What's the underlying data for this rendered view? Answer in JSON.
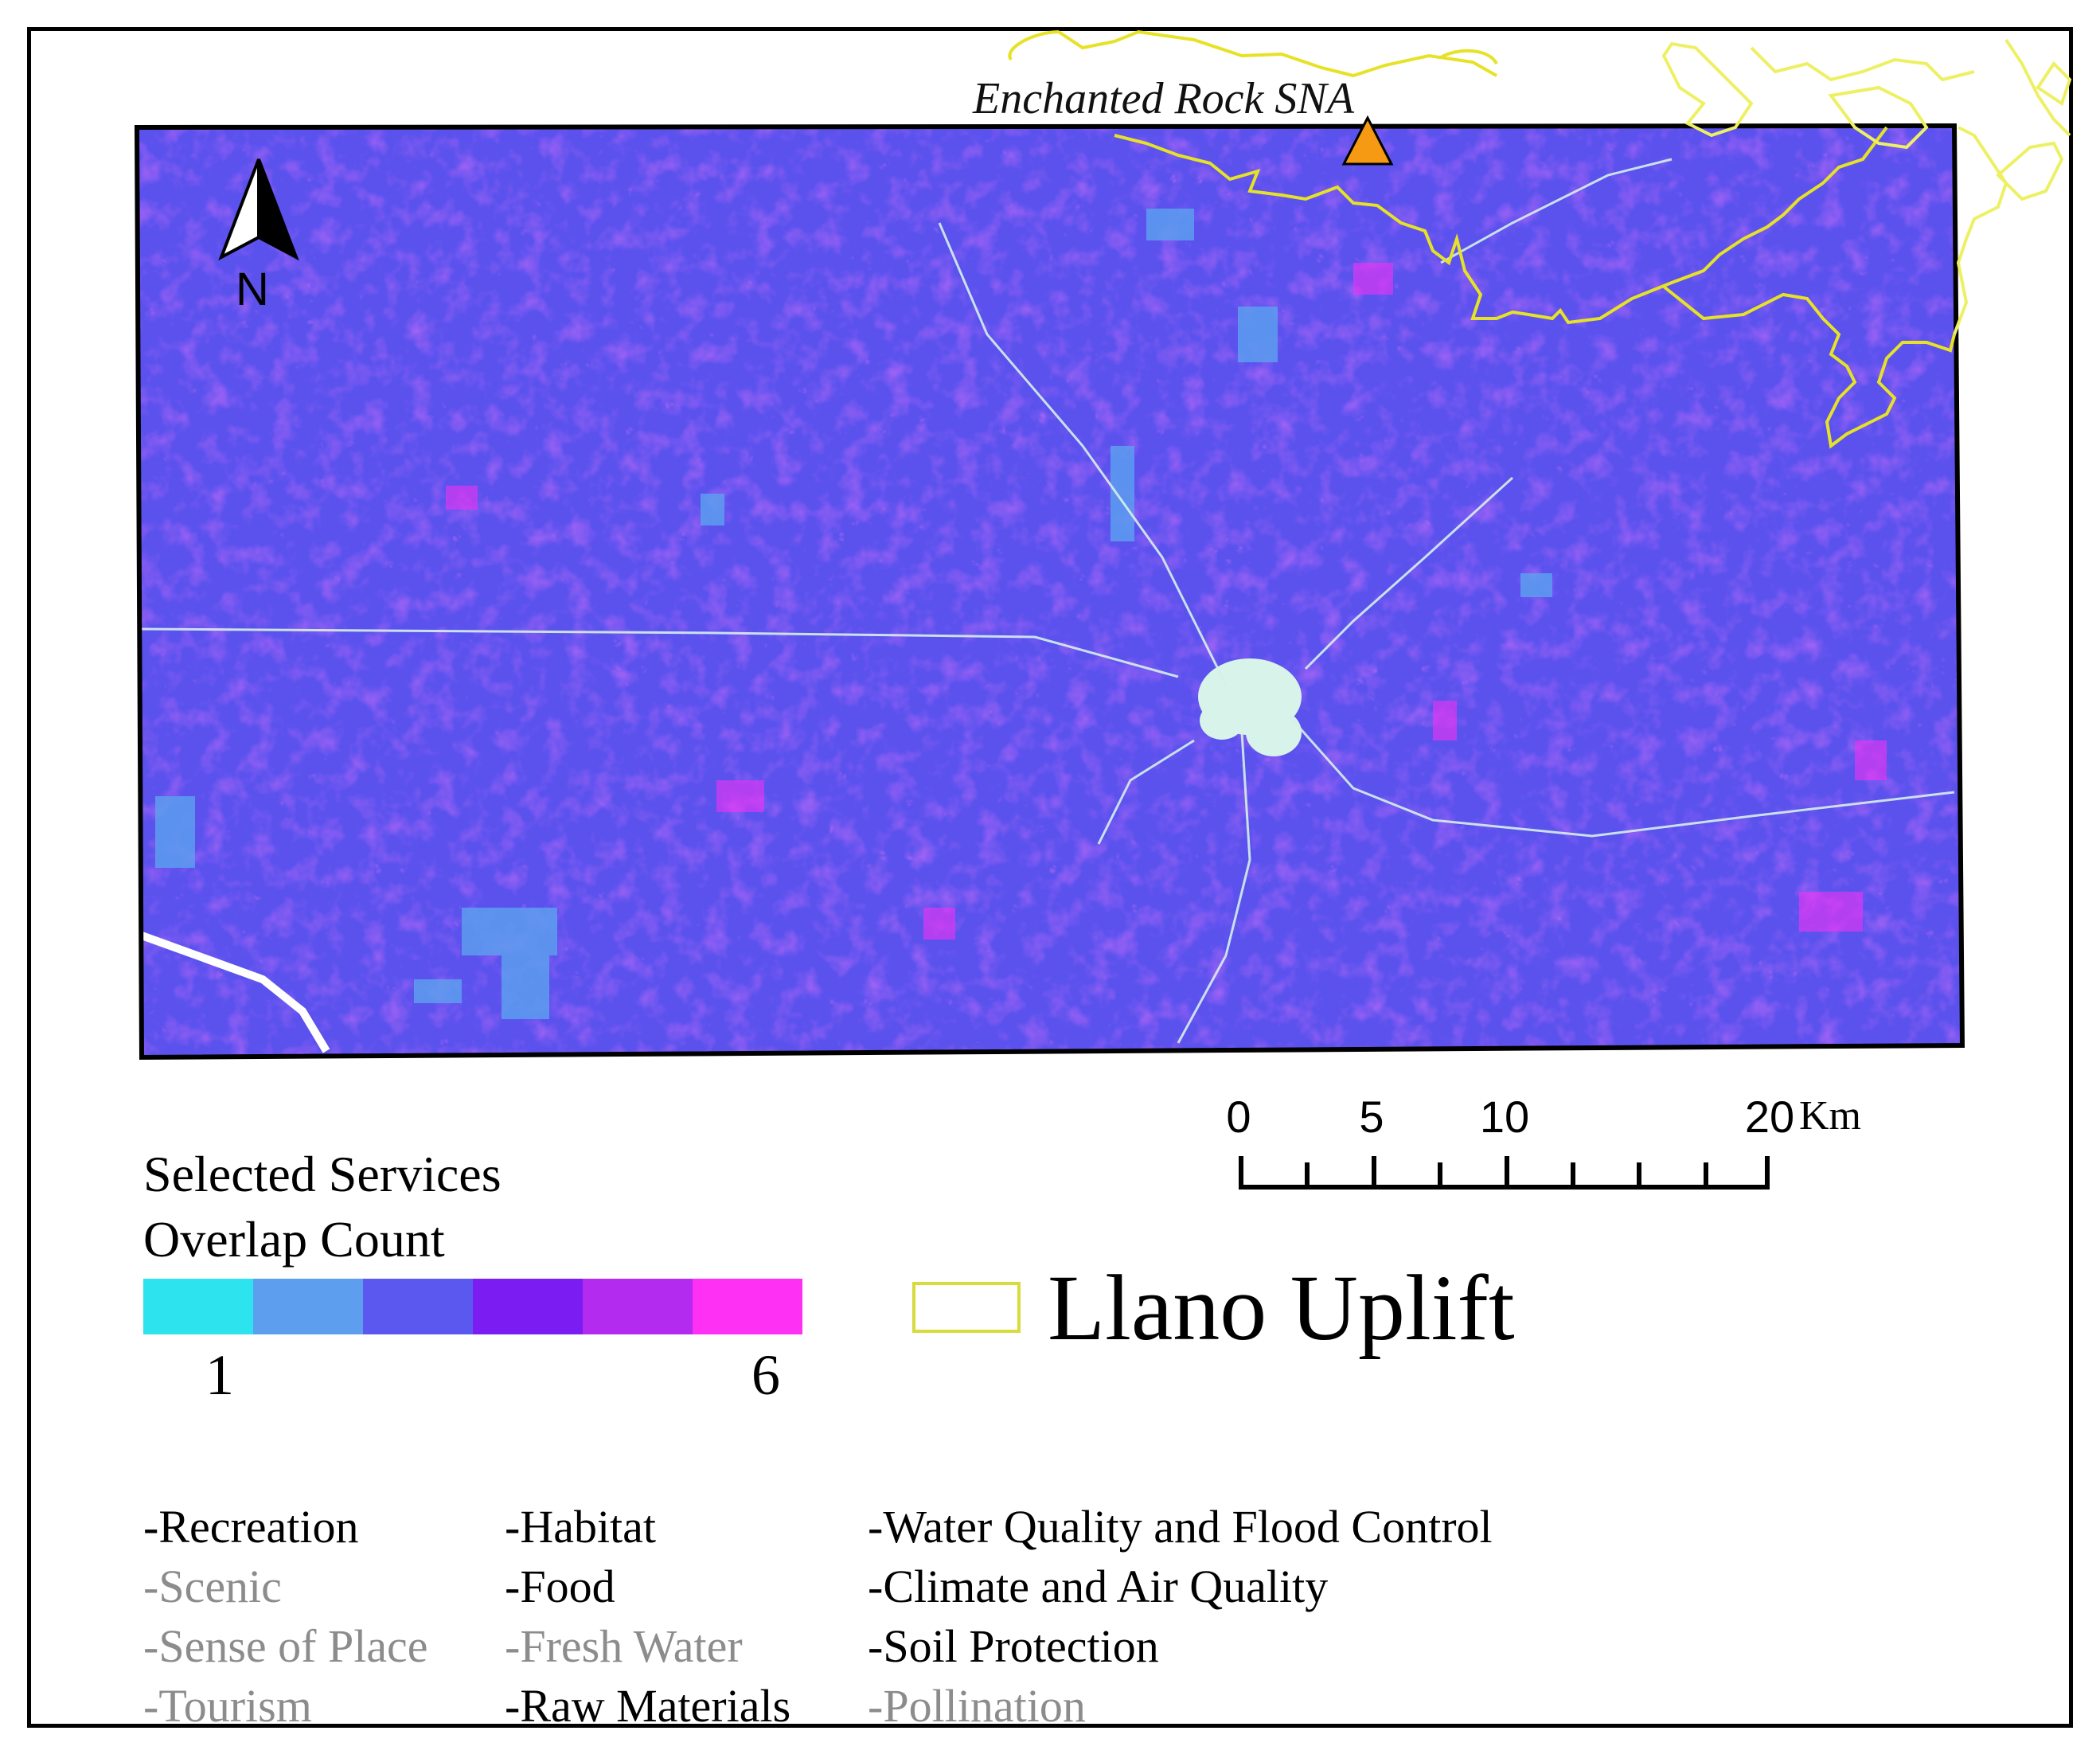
{
  "map": {
    "marker_label": "Enchanted Rock SNA",
    "marker_color": "#f59a12",
    "boundary_color": "#e7e62a",
    "north_label": "N"
  },
  "scale": {
    "ticks": [
      "0",
      "5",
      "10",
      "20"
    ],
    "unit": "Km"
  },
  "legend": {
    "title_line1": "Selected Services",
    "title_line2": "Overlap Count",
    "ramp_colors": [
      "#2de3ee",
      "#5d9eef",
      "#5b58ef",
      "#7b1df2",
      "#b22bef",
      "#fe30f4"
    ],
    "ramp_min": "1",
    "ramp_max": "6",
    "boundary_label": "Llano Uplift"
  },
  "services": {
    "col1": [
      {
        "text": "-Recreation",
        "grey": false
      },
      {
        "text": "-Scenic",
        "grey": true
      },
      {
        "text": "-Sense of Place",
        "grey": true
      },
      {
        "text": "-Tourism",
        "grey": true
      }
    ],
    "col2": [
      {
        "text": "-Habitat",
        "grey": false
      },
      {
        "text": "-Food",
        "grey": false
      },
      {
        "text": "-Fresh Water",
        "grey": true
      },
      {
        "text": "-Raw Materials",
        "grey": false
      }
    ],
    "col3": [
      {
        "text": "-Water Quality and Flood Control",
        "grey": false
      },
      {
        "text": "-Climate and Air Quality",
        "grey": false
      },
      {
        "text": "-Soil Protection",
        "grey": false
      },
      {
        "text": "-Pollination",
        "grey": true
      }
    ]
  }
}
